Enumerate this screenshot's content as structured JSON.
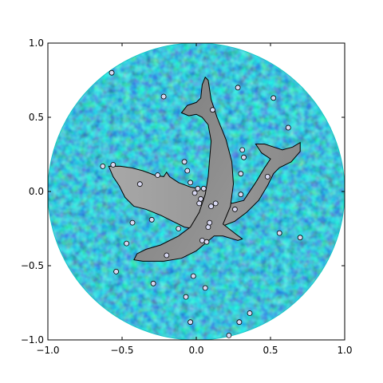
{
  "chart_data": {
    "type": "scatter",
    "title": "",
    "xlabel": "",
    "ylabel": "",
    "xlim": [
      -1.0,
      1.0
    ],
    "ylim": [
      -1.0,
      1.0
    ],
    "grid": false,
    "legend": "none",
    "xticks": [
      -1.0,
      -0.5,
      0.0,
      0.5,
      1.0
    ],
    "yticks": [
      -1.0,
      -0.5,
      0.0,
      0.5,
      1.0
    ],
    "xtick_labels": [
      "−1.0",
      "−0.5",
      "0.0",
      "0.5",
      "1.0"
    ],
    "ytick_labels": [
      "−1.0",
      "−0.5",
      "0.0",
      "0.5",
      "1.0"
    ],
    "background_image": {
      "shape": "circle",
      "center": [
        0.0,
        0.0
      ],
      "radius": 1.0,
      "texture": "random noise",
      "colors": [
        "#0a1f9e",
        "#1560c8",
        "#19c06a",
        "#3ef58a"
      ],
      "edge_color": "#19c8c8"
    },
    "dolphins": [
      {
        "fill": "#8c8c8c",
        "edge_color": "#000000"
      },
      {
        "fill": "#9a9a9a",
        "edge_color": "#000000"
      }
    ],
    "series": [
      {
        "marker": "circle",
        "color": "#d8d8f2",
        "edge_color": "#000000",
        "points": [
          [
            -0.63,
            0.17
          ],
          [
            -0.57,
            0.8
          ],
          [
            -0.56,
            0.18
          ],
          [
            -0.54,
            -0.54
          ],
          [
            -0.47,
            -0.35
          ],
          [
            -0.43,
            -0.21
          ],
          [
            -0.38,
            0.05
          ],
          [
            -0.3,
            -0.19
          ],
          [
            -0.29,
            -0.62
          ],
          [
            -0.26,
            0.11
          ],
          [
            -0.22,
            0.64
          ],
          [
            -0.2,
            -0.43
          ],
          [
            -0.12,
            -0.25
          ],
          [
            -0.08,
            0.2
          ],
          [
            -0.07,
            -0.71
          ],
          [
            -0.06,
            0.14
          ],
          [
            -0.04,
            0.06
          ],
          [
            -0.02,
            -0.57
          ],
          [
            -0.01,
            -0.01
          ],
          [
            0.01,
            0.02
          ],
          [
            0.02,
            -0.08
          ],
          [
            0.03,
            -0.05
          ],
          [
            0.04,
            -0.33
          ],
          [
            0.05,
            0.02
          ],
          [
            0.06,
            -0.65
          ],
          [
            0.07,
            -0.34
          ],
          [
            0.08,
            -0.24
          ],
          [
            0.09,
            -0.21
          ],
          [
            0.1,
            -0.1
          ],
          [
            0.11,
            0.55
          ],
          [
            0.13,
            -0.08
          ],
          [
            0.26,
            -0.12
          ],
          [
            0.28,
            0.7
          ],
          [
            0.29,
            -0.88
          ],
          [
            0.3,
            0.12
          ],
          [
            0.31,
            0.28
          ],
          [
            0.32,
            0.23
          ],
          [
            0.36,
            -0.82
          ],
          [
            0.48,
            0.1
          ],
          [
            0.52,
            0.63
          ],
          [
            0.56,
            -0.28
          ],
          [
            0.62,
            0.43
          ],
          [
            0.7,
            -0.31
          ],
          [
            0.22,
            -0.97
          ],
          [
            -0.04,
            -0.88
          ],
          [
            0.3,
            -0.02
          ]
        ]
      }
    ]
  }
}
